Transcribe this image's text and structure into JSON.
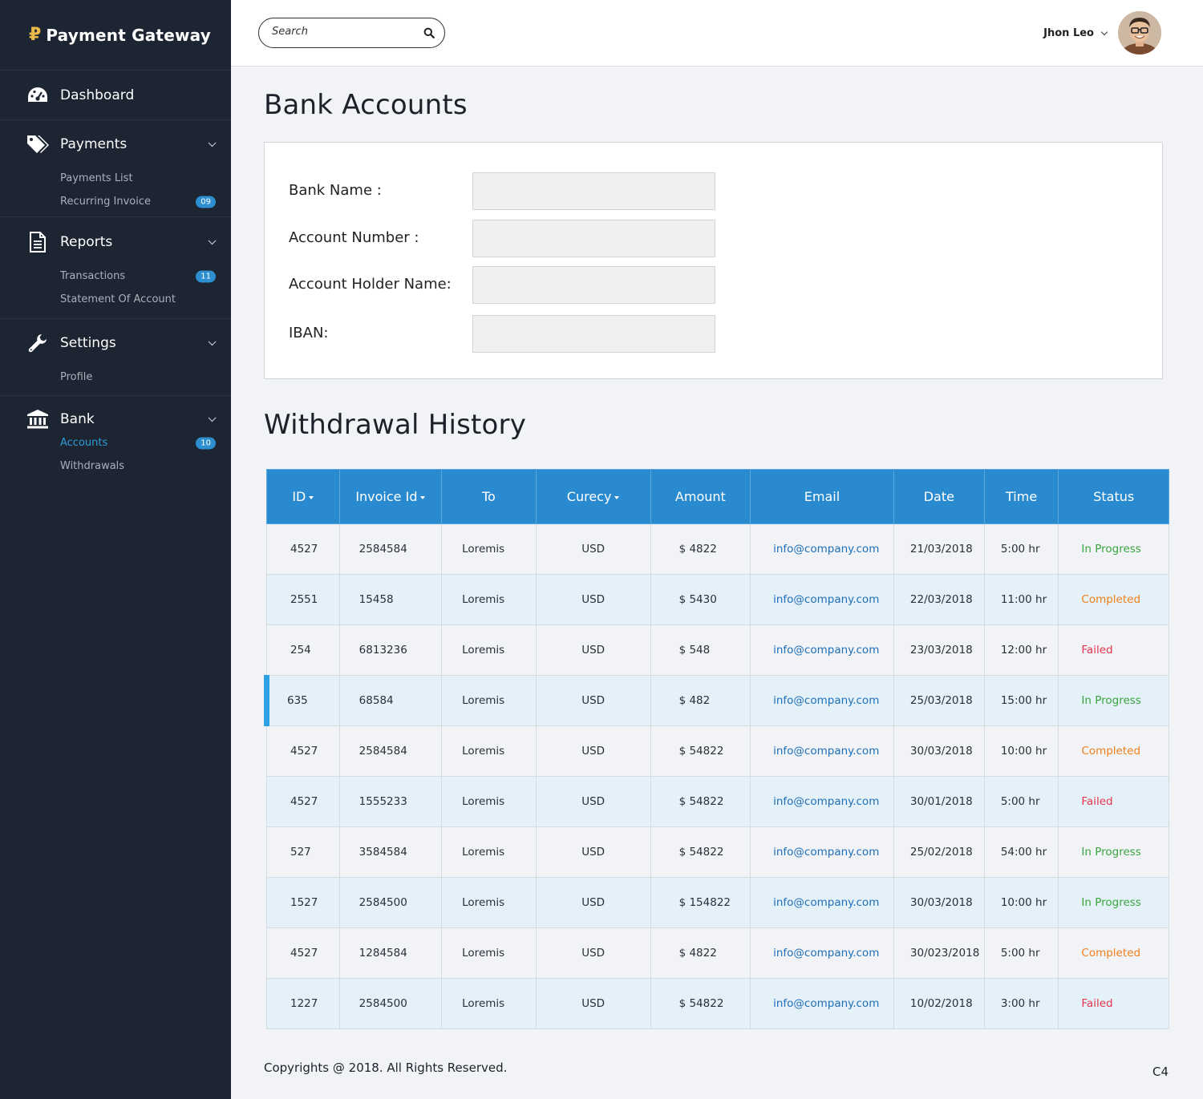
{
  "brand": {
    "logo_glyph": "₽",
    "name": "Payment Gateway",
    "logo_color": "#e9b949"
  },
  "sidebar": {
    "sections": [
      {
        "label": "Dashboard",
        "icon": "dashboard-icon",
        "items": []
      },
      {
        "label": "Payments",
        "icon": "tags-icon",
        "items": [
          {
            "label": "Payments List",
            "badge": ""
          },
          {
            "label": "Recurring Invoice",
            "badge": "09"
          }
        ]
      },
      {
        "label": "Reports",
        "icon": "document-icon",
        "items": [
          {
            "label": "Transactions",
            "badge": "11"
          },
          {
            "label": "Statement Of Account",
            "badge": ""
          }
        ]
      },
      {
        "label": "Settings",
        "icon": "wrench-icon",
        "items": [
          {
            "label": "Profile",
            "badge": ""
          }
        ]
      },
      {
        "label": "Bank",
        "icon": "bank-icon",
        "items": [
          {
            "label": "Accounts",
            "badge": "10",
            "active": true
          },
          {
            "label": "Withdrawals",
            "badge": ""
          }
        ]
      }
    ]
  },
  "topbar": {
    "search_placeholder": "Search",
    "user_name": "Jhon Leo"
  },
  "page": {
    "title": "Bank Accounts",
    "form": {
      "bank_name_label": "Bank Name :",
      "account_number_label": "Account Number :",
      "holder_name_label": "Account Holder Name:",
      "iban_label": "IBAN:"
    },
    "history_title": "Withdrawal History"
  },
  "table": {
    "headers": [
      "ID",
      "Invoice Id",
      "To",
      "Curecy",
      "Amount",
      "Email",
      "Date",
      "Time",
      "Status"
    ],
    "sortable": [
      true,
      true,
      false,
      true,
      false,
      false,
      false,
      false,
      false
    ],
    "rows": [
      [
        "4527",
        "2584584",
        "Loremis",
        "USD",
        "$ 4822",
        "info@company.com",
        "21/03/2018",
        "5:00 hr",
        "In Progress"
      ],
      [
        "2551",
        "15458",
        "Loremis",
        "USD",
        "$ 5430",
        "info@company.com",
        "22/03/2018",
        "11:00 hr",
        "Completed"
      ],
      [
        "254",
        "6813236",
        "Loremis",
        "USD",
        "$ 548",
        "info@company.com",
        "23/03/2018",
        "12:00 hr",
        "Failed"
      ],
      [
        "635",
        "68584",
        "Loremis",
        "USD",
        "$ 482",
        "info@company.com",
        "25/03/2018",
        "15:00 hr",
        "In Progress"
      ],
      [
        "4527",
        "2584584",
        "Loremis",
        "USD",
        "$ 54822",
        "info@company.com",
        "30/03/2018",
        "10:00 hr",
        "Completed"
      ],
      [
        "4527",
        "1555233",
        "Loremis",
        "USD",
        "$ 54822",
        "info@company.com",
        "30/01/2018",
        "5:00 hr",
        "Failed"
      ],
      [
        "527",
        "3584584",
        "Loremis",
        "USD",
        "$ 54822",
        "info@company.com",
        "25/02/2018",
        "54:00 hr",
        "In Progress"
      ],
      [
        "1527",
        "2584500",
        "Loremis",
        "USD",
        "$ 154822",
        "info@company.com",
        "30/03/2018",
        "10:00 hr",
        "In Progress"
      ],
      [
        "4527",
        "1284584",
        "Loremis",
        "USD",
        "$ 4822",
        "info@company.com",
        "30/023/2018",
        "5:00 hr",
        "Completed"
      ],
      [
        "1227",
        "2584500",
        "Loremis",
        "USD",
        "$ 54822",
        "info@company.com",
        "10/02/2018",
        "3:00 hr",
        "Failed"
      ]
    ],
    "selected_row": 3,
    "status_colors": {
      "In Progress": "#3aa53e",
      "Completed": "#f07f1a",
      "Failed": "#e8344e"
    }
  },
  "footer": {
    "copyright": "Copyrights @ 2018. All Rights Reserved.",
    "page_code": "C4"
  },
  "colors": {
    "sidebar_bg": "#1e2532",
    "accent": "#2a8ad0",
    "badge": "#2e8fd0"
  }
}
